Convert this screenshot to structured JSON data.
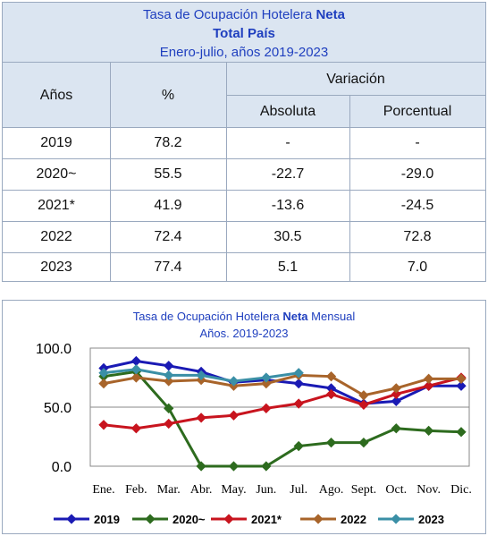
{
  "table": {
    "title_prefix": "Tasa de Ocupación Hotelera ",
    "title_bold": "Neta",
    "subtitle": "Total País",
    "period": "Enero-julio, años 2019-2023",
    "headers": {
      "years": "Años",
      "pct": "%",
      "variation": "Variación",
      "absolute": "Absoluta",
      "percent": "Porcentual"
    },
    "rows": [
      {
        "year": "2019",
        "pct": "78.2",
        "abs": "-",
        "per": "-"
      },
      {
        "year": "2020~",
        "pct": "55.5",
        "abs": "-22.7",
        "per": "-29.0"
      },
      {
        "year": "2021*",
        "pct": "41.9",
        "abs": "-13.6",
        "per": "-24.5"
      },
      {
        "year": "2022",
        "pct": "72.4",
        "abs": "30.5",
        "per": "72.8"
      },
      {
        "year": "2023",
        "pct": "77.4",
        "abs": "5.1",
        "per": "7.0"
      }
    ]
  },
  "chart_data": {
    "type": "line",
    "title_prefix": "Tasa de Ocupación Hotelera ",
    "title_bold": "Neta",
    "title_suffix": " Mensual",
    "subtitle": "Años. 2019-2023",
    "categories": [
      "Ene.",
      "Feb.",
      "Mar.",
      "Abr.",
      "May.",
      "Jun.",
      "Jul.",
      "Ago.",
      "Sept.",
      "Oct.",
      "Nov.",
      "Dic."
    ],
    "yticks": [
      "100.0",
      "50.0",
      "0.0"
    ],
    "ylim": [
      0,
      100
    ],
    "grid": true,
    "legend_position": "bottom",
    "series": [
      {
        "name": "2019",
        "color": "#1a1ab4",
        "values": [
          83,
          89,
          85,
          80,
          71,
          73,
          70,
          66,
          53,
          55,
          68,
          68
        ]
      },
      {
        "name": "2020~",
        "color": "#2d6b1e",
        "values": [
          76,
          80,
          49,
          0,
          0,
          0,
          17,
          20,
          20,
          32,
          30,
          29
        ]
      },
      {
        "name": "2021*",
        "color": "#c8141e",
        "values": [
          35,
          32,
          36,
          41,
          43,
          49,
          53,
          61,
          52,
          61,
          68,
          75
        ]
      },
      {
        "name": "2022",
        "color": "#a8642a",
        "values": [
          70,
          75,
          72,
          73,
          68,
          70,
          77,
          76,
          60,
          66,
          74,
          74
        ]
      },
      {
        "name": "2023",
        "color": "#3a8fa6",
        "values": [
          79,
          82,
          77,
          77,
          72,
          75,
          79,
          null,
          null,
          null,
          null,
          null
        ]
      }
    ]
  }
}
